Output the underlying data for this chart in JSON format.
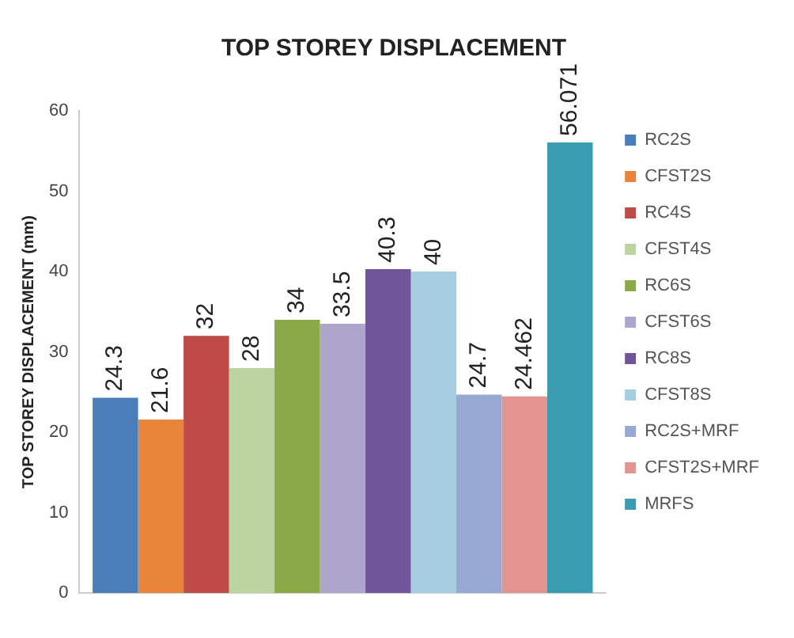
{
  "chart_data": {
    "type": "bar",
    "title": "TOP STOREY DISPLACEMENT",
    "ylabel": "TOP STOREY DISPLACEMENT (mm)",
    "categories": [
      null
    ],
    "series": [
      {
        "name": "RC2S",
        "color": "#4a7ebb",
        "values": [
          24.3
        ]
      },
      {
        "name": "CFST2S",
        "color": "#e8843a",
        "values": [
          21.6
        ]
      },
      {
        "name": "RC4S",
        "color": "#be4b48",
        "values": [
          32
        ]
      },
      {
        "name": "CFST4S",
        "color": "#bcd4a0",
        "values": [
          28
        ]
      },
      {
        "name": "RC6S",
        "color": "#8aaa48",
        "values": [
          34
        ]
      },
      {
        "name": "CFST6S",
        "color": "#aea5cc",
        "values": [
          33.5
        ]
      },
      {
        "name": "RC8S",
        "color": "#70559a",
        "values": [
          40.3
        ]
      },
      {
        "name": "CFST8S",
        "color": "#a6cde0",
        "values": [
          40
        ]
      },
      {
        "name": "RC2S+MRF",
        "color": "#97a9d2",
        "values": [
          24.7
        ]
      },
      {
        "name": "CFST2S+MRF",
        "color": "#e39490",
        "values": [
          24.462
        ]
      },
      {
        "name": "MRFS",
        "color": "#3a9cb0",
        "values": [
          56.071
        ]
      }
    ],
    "ylim": [
      0,
      60
    ],
    "yticks": [
      0,
      10,
      20,
      30,
      40,
      50,
      60
    ],
    "grid": false,
    "legend": "right",
    "data_labels": true
  }
}
